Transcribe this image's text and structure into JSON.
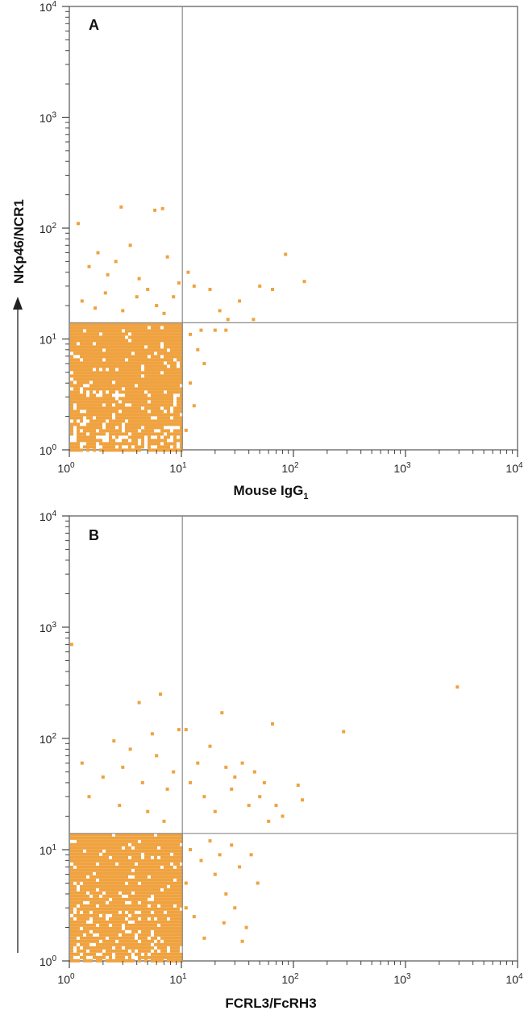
{
  "colors": {
    "events": "#EFA23F",
    "quadrant": "#8a8a8a",
    "frame": "#555555"
  },
  "y_axis_label": "NKp46/NCR1",
  "chart_data": [
    {
      "type": "scatter",
      "panel": "A",
      "xlabel": "Mouse IgG",
      "xlabel_subscript": "1",
      "xlim": [
        1,
        10000
      ],
      "ylim": [
        1,
        10000
      ],
      "xscale": "log",
      "yscale": "log",
      "x_ticks": [
        1,
        10,
        100,
        1000,
        10000
      ],
      "y_ticks": [
        1,
        10,
        100,
        1000,
        10000
      ],
      "quadrant_gate": {
        "x": 10.2,
        "y": 14
      },
      "dense_region": {
        "x": [
          1,
          10
        ],
        "y": [
          1,
          14
        ]
      },
      "points": [
        [
          1.2,
          110
        ],
        [
          1.5,
          45
        ],
        [
          1.8,
          60
        ],
        [
          2.2,
          38
        ],
        [
          2.6,
          50
        ],
        [
          2.9,
          155
        ],
        [
          3.5,
          70
        ],
        [
          4.2,
          35
        ],
        [
          5.0,
          28
        ],
        [
          5.8,
          145
        ],
        [
          6.8,
          150
        ],
        [
          7.5,
          55
        ],
        [
          8.5,
          24
        ],
        [
          9.5,
          32
        ],
        [
          1.3,
          22
        ],
        [
          1.7,
          19
        ],
        [
          2.1,
          26
        ],
        [
          3.0,
          18
        ],
        [
          4.0,
          24
        ],
        [
          6.0,
          20
        ],
        [
          7.0,
          17
        ],
        [
          11.5,
          40
        ],
        [
          13,
          30
        ],
        [
          18,
          28
        ],
        [
          22,
          18
        ],
        [
          26,
          15
        ],
        [
          33,
          22
        ],
        [
          44,
          15
        ],
        [
          50,
          30
        ],
        [
          65,
          28
        ],
        [
          85,
          58
        ],
        [
          125,
          33
        ],
        [
          12,
          11
        ],
        [
          14,
          8
        ],
        [
          16,
          6
        ],
        [
          12,
          4
        ],
        [
          13,
          2.5
        ],
        [
          11,
          1.5
        ],
        [
          15,
          12
        ],
        [
          20,
          12
        ],
        [
          25,
          12
        ]
      ]
    },
    {
      "type": "scatter",
      "panel": "B",
      "xlabel": "FCRL3/FcRH3",
      "xlim": [
        1,
        10000
      ],
      "ylim": [
        1,
        10000
      ],
      "xscale": "log",
      "yscale": "log",
      "x_ticks": [
        1,
        10,
        100,
        1000,
        10000
      ],
      "y_ticks": [
        1,
        10,
        100,
        1000,
        10000
      ],
      "quadrant_gate": {
        "x": 10.2,
        "y": 14
      },
      "dense_region": {
        "x": [
          1,
          10
        ],
        "y": [
          1,
          14
        ]
      },
      "points": [
        [
          1.05,
          700
        ],
        [
          4.2,
          210
        ],
        [
          6.5,
          250
        ],
        [
          2.5,
          95
        ],
        [
          3.5,
          80
        ],
        [
          5.5,
          110
        ],
        [
          9.5,
          120
        ],
        [
          1.3,
          60
        ],
        [
          2.0,
          45
        ],
        [
          3.0,
          55
        ],
        [
          4.5,
          40
        ],
        [
          6.0,
          70
        ],
        [
          7.5,
          35
        ],
        [
          8.5,
          50
        ],
        [
          1.5,
          30
        ],
        [
          2.8,
          25
        ],
        [
          5.0,
          22
        ],
        [
          7.0,
          18
        ],
        [
          11,
          120
        ],
        [
          12,
          40
        ],
        [
          14,
          60
        ],
        [
          16,
          30
        ],
        [
          18,
          85
        ],
        [
          20,
          22
        ],
        [
          23,
          170
        ],
        [
          25,
          55
        ],
        [
          28,
          35
        ],
        [
          30,
          45
        ],
        [
          35,
          60
        ],
        [
          40,
          25
        ],
        [
          45,
          50
        ],
        [
          50,
          30
        ],
        [
          55,
          40
        ],
        [
          60,
          18
        ],
        [
          65,
          135
        ],
        [
          70,
          25
        ],
        [
          80,
          20
        ],
        [
          110,
          38
        ],
        [
          120,
          28
        ],
        [
          280,
          115
        ],
        [
          2900,
          290
        ],
        [
          12,
          10
        ],
        [
          15,
          8
        ],
        [
          18,
          12
        ],
        [
          20,
          6
        ],
        [
          22,
          9
        ],
        [
          25,
          4
        ],
        [
          28,
          11
        ],
        [
          30,
          3
        ],
        [
          33,
          7
        ],
        [
          38,
          2
        ],
        [
          42,
          9
        ],
        [
          48,
          5
        ],
        [
          13,
          2.5
        ],
        [
          16,
          1.6
        ],
        [
          11,
          5
        ],
        [
          11,
          3
        ],
        [
          24,
          2.2
        ],
        [
          35,
          1.5
        ]
      ]
    }
  ]
}
